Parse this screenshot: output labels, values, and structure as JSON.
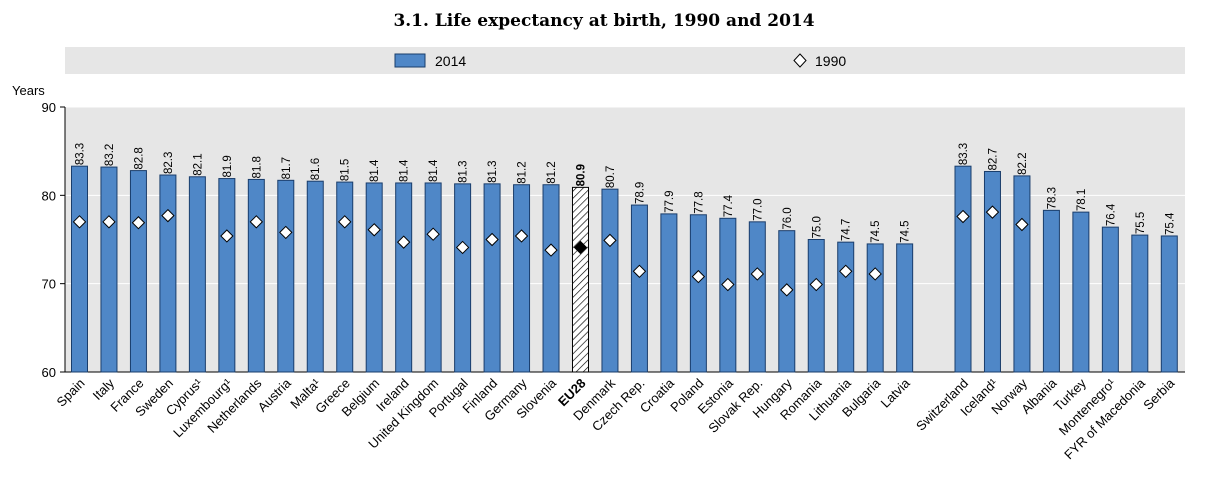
{
  "chart_data": {
    "type": "bar",
    "title": "3.1.  Life expectancy at birth, 1990 and 2014",
    "ylabel": "Years",
    "ylim": [
      60,
      90
    ],
    "yticks": [
      60,
      70,
      80,
      90
    ],
    "grid": true,
    "legend_position": "top",
    "colors": {
      "bar": "#4f87c7",
      "bar_stroke": "#1a3d6b",
      "marker_fill": "#ffffff",
      "marker_highlight": "#000000",
      "legend_band": "#e6e6e6"
    },
    "series": [
      {
        "name": "2014",
        "marker": "bar"
      },
      {
        "name": "1990",
        "marker": "diamond"
      }
    ],
    "groups": [
      {
        "categories": [
          "Spain",
          "Italy",
          "France",
          "Sweden",
          "Cyprus¹",
          "Luxembourg¹",
          "Netherlands",
          "Austria",
          "Malta¹",
          "Greece",
          "Belgium",
          "Ireland",
          "United Kingdom",
          "Portugal",
          "Finland",
          "Germany",
          "Slovenia",
          "EU28",
          "Denmark",
          "Czech Rep.",
          "Croatia",
          "Poland",
          "Estonia",
          "Slovak Rep.",
          "Hungary",
          "Romania",
          "Lithuania",
          "Bulgaria",
          "Latvia"
        ],
        "values_2014": [
          83.3,
          83.2,
          82.8,
          82.3,
          82.1,
          81.9,
          81.8,
          81.7,
          81.6,
          81.5,
          81.4,
          81.4,
          81.4,
          81.3,
          81.3,
          81.2,
          81.2,
          80.9,
          80.7,
          78.9,
          77.9,
          77.8,
          77.4,
          77.0,
          76.0,
          75.0,
          74.7,
          74.5,
          74.5
        ],
        "values_1990": [
          77.0,
          77.0,
          76.9,
          77.7,
          null,
          75.4,
          77.0,
          75.8,
          null,
          77.0,
          76.1,
          74.7,
          75.6,
          74.1,
          75.0,
          75.4,
          73.8,
          74.1,
          74.9,
          71.4,
          null,
          70.8,
          69.9,
          71.1,
          69.3,
          69.9,
          71.4,
          71.1,
          null
        ],
        "highlight": "EU28"
      },
      {
        "categories": [
          "Switzerland",
          "Iceland¹",
          "Norway",
          "Albania",
          "Turkey",
          "Montenegro¹",
          "FYR of Macedonia",
          "Serbia"
        ],
        "values_2014": [
          83.3,
          82.7,
          82.2,
          78.3,
          78.1,
          76.4,
          75.5,
          75.4
        ],
        "values_1990": [
          77.6,
          78.1,
          76.7,
          null,
          null,
          null,
          null,
          null
        ]
      }
    ]
  }
}
